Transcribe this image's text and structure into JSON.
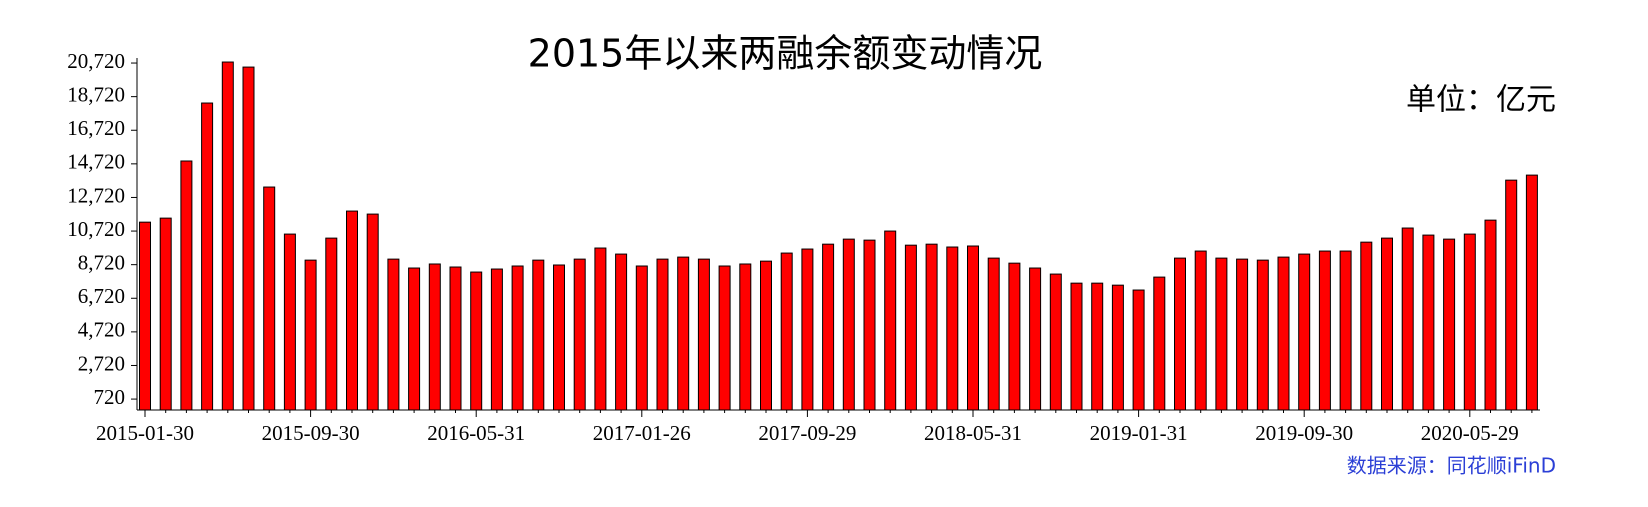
{
  "chart_data": {
    "type": "bar",
    "title": "2015年以来两融余额变动情况",
    "unit": "单位：亿元",
    "source": "数据来源：同花顺iFinD",
    "categories": [
      "2015-01-30",
      null,
      null,
      null,
      null,
      null,
      null,
      null,
      "2015-09-30",
      null,
      null,
      null,
      null,
      null,
      null,
      null,
      "2016-05-31",
      null,
      null,
      null,
      null,
      null,
      null,
      null,
      "2017-01-26",
      null,
      null,
      null,
      null,
      null,
      null,
      null,
      "2017-09-29",
      null,
      null,
      null,
      null,
      null,
      null,
      null,
      "2018-05-31",
      null,
      null,
      null,
      null,
      null,
      null,
      null,
      "2019-01-31",
      null,
      null,
      null,
      null,
      null,
      null,
      null,
      "2019-09-30",
      null,
      null,
      null,
      null,
      null,
      null,
      null,
      "2020-05-29",
      null,
      null,
      null
    ],
    "values": [
      11250,
      11490,
      14890,
      18340,
      20780,
      20480,
      13340,
      10540,
      8990,
      10300,
      11910,
      11730,
      9050,
      8520,
      8760,
      8580,
      8280,
      8460,
      8640,
      8990,
      8700,
      9050,
      9710,
      9350,
      8640,
      9050,
      9170,
      9050,
      8640,
      8760,
      8930,
      9410,
      9650,
      9940,
      10240,
      10180,
      10720,
      9880,
      9940,
      9770,
      9830,
      9110,
      8810,
      8520,
      8160,
      7620,
      7620,
      7500,
      7210,
      7980,
      9110,
      9530,
      9110,
      9050,
      8990,
      9170,
      9350,
      9530,
      9530,
      10060,
      10300,
      10900,
      10480,
      10240,
      10540,
      11370,
      13750,
      14050
    ],
    "color": "#ff0000",
    "ylim": [
      70,
      21020
    ],
    "yticks": [
      720,
      {
        "value": 2720,
        "label": "2,720"
      },
      {
        "value": 4720,
        "label": "4,720"
      },
      {
        "value": 6720,
        "label": "6,720"
      },
      {
        "value": 8720,
        "label": "8,720"
      },
      {
        "value": 10720,
        "label": "10,720"
      },
      {
        "value": 12720,
        "label": "12,720"
      },
      {
        "value": 14720,
        "label": "14,720"
      },
      {
        "value": 16720,
        "label": "16,720"
      },
      {
        "value": 18720,
        "label": "18,720"
      },
      {
        "value": 20720,
        "label": "20,720"
      }
    ],
    "grid": false
  }
}
